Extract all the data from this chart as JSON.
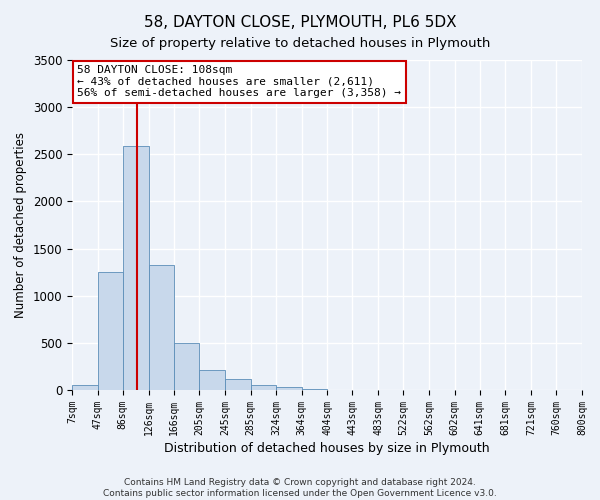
{
  "title": "58, DAYTON CLOSE, PLYMOUTH, PL6 5DX",
  "subtitle": "Size of property relative to detached houses in Plymouth",
  "xlabel": "Distribution of detached houses by size in Plymouth",
  "ylabel": "Number of detached properties",
  "property_size": 108,
  "annotation_line1": "58 DAYTON CLOSE: 108sqm",
  "annotation_line2": "← 43% of detached houses are smaller (2,611)",
  "annotation_line3": "56% of semi-detached houses are larger (3,358) →",
  "footer_line1": "Contains HM Land Registry data © Crown copyright and database right 2024.",
  "footer_line2": "Contains public sector information licensed under the Open Government Licence v3.0.",
  "bin_edges": [
    7,
    47,
    86,
    126,
    166,
    205,
    245,
    285,
    324,
    364,
    404,
    443,
    483,
    522,
    562,
    602,
    641,
    681,
    721,
    760,
    800
  ],
  "bin_counts": [
    50,
    1250,
    2590,
    1330,
    500,
    210,
    120,
    55,
    35,
    10,
    5,
    3,
    3,
    1,
    0,
    0,
    0,
    0,
    0,
    0
  ],
  "bar_color": "#c8d8eb",
  "bar_edge_color": "#5b8db8",
  "vline_color": "#cc0000",
  "vline_x": 108,
  "annotation_box_color": "#cc0000",
  "background_color": "#edf2f9",
  "plot_background": "#edf2f9",
  "ylim": [
    0,
    3500
  ],
  "yticks": [
    0,
    500,
    1000,
    1500,
    2000,
    2500,
    3000,
    3500
  ],
  "grid_color": "#ffffff",
  "title_fontsize": 11,
  "subtitle_fontsize": 9.5,
  "axis_label_fontsize": 9,
  "ylabel_fontsize": 8.5,
  "footer_fontsize": 6.5
}
